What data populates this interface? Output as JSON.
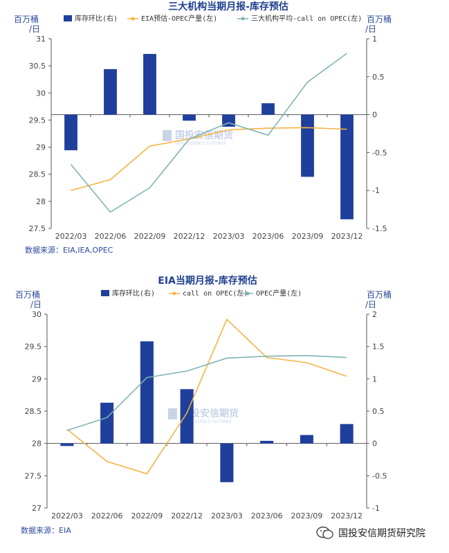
{
  "colors": {
    "bar": "#1f3f9c",
    "orange": "#f5b342",
    "teal": "#7fb3b5",
    "axis_label": "#2c4a9a",
    "title": "#1f3f8f"
  },
  "watermark": {
    "name": "国投安信期货",
    "sub": "SDIC ESSENCE FUTURES"
  },
  "footer": {
    "brand": "国投安信期货研究院",
    "icon": "wechat-icon"
  },
  "chart_data": [
    {
      "type": "bar+line",
      "title": "三大机构当期月报-库存预估",
      "left_unit": "百万桶/日",
      "right_unit": "百万桶/日",
      "source": "数据来源：EIA,IEA,OPEC",
      "categories": [
        "2022/03",
        "2022/06",
        "2022/09",
        "2022/12",
        "2023/03",
        "2023/06",
        "2023/09",
        "2023/12"
      ],
      "left_axis": {
        "min": 27.5,
        "max": 31,
        "ticks": [
          "31",
          "30.5",
          "30",
          "29.5",
          "29",
          "28.5",
          "28",
          "27.5"
        ]
      },
      "right_axis": {
        "min": -1.5,
        "max": 1,
        "ticks": [
          "1",
          "0.5",
          "0",
          "-0.5",
          "-1",
          "-1.5"
        ]
      },
      "legend": [
        "库存环比(右)",
        "EIA预估-OPEC产量(左)",
        "三大机构平均-call on OPEC(左)"
      ],
      "series": [
        {
          "name": "库存环比(右)",
          "kind": "bar",
          "axis": "right",
          "color": "#1f3f9c",
          "values": [
            -0.47,
            0.6,
            0.8,
            -0.08,
            -0.16,
            0.15,
            -0.82,
            -1.38
          ]
        },
        {
          "name": "EIA预估-OPEC产量(左)",
          "kind": "line",
          "axis": "left",
          "color": "#f5b342",
          "values": [
            28.2,
            28.4,
            29.02,
            29.15,
            29.32,
            29.35,
            29.36,
            29.33
          ]
        },
        {
          "name": "三大机构平均-call on OPEC(左)",
          "kind": "line",
          "axis": "left",
          "color": "#7fb3b5",
          "values": [
            28.68,
            27.8,
            28.25,
            29.15,
            29.45,
            29.22,
            30.2,
            30.73
          ]
        }
      ]
    },
    {
      "type": "bar+line",
      "title": "EIA当期月报-库存预估",
      "left_unit": "百万桶/日",
      "right_unit": "百万桶/日",
      "source": "数据来源：EIA",
      "categories": [
        "2022/03",
        "2022/06",
        "2022/09",
        "2022/12",
        "2023/03",
        "2023/06",
        "2023/09",
        "2023/12"
      ],
      "left_axis": {
        "min": 27,
        "max": 30,
        "ticks": [
          "30",
          "29.5",
          "29",
          "28.5",
          "28",
          "27.5",
          "27"
        ]
      },
      "right_axis": {
        "min": -1,
        "max": 2,
        "ticks": [
          "2",
          "1.5",
          "1",
          "0.5",
          "0",
          "-0.5",
          "-1"
        ]
      },
      "legend": [
        "库存环比(右)",
        "call on OPEC(左)",
        "OPEC产量(左)"
      ],
      "series": [
        {
          "name": "库存环比(右)",
          "kind": "bar",
          "axis": "right",
          "color": "#1f3f9c",
          "values": [
            -0.04,
            0.63,
            1.58,
            0.84,
            -0.6,
            0.04,
            0.13,
            0.3
          ]
        },
        {
          "name": "call on OPEC(左)",
          "kind": "line",
          "axis": "left",
          "color": "#f5b342",
          "values": [
            28.22,
            27.72,
            27.53,
            28.47,
            29.92,
            29.33,
            29.25,
            29.04
          ]
        },
        {
          "name": "OPEC产量(左)",
          "kind": "line",
          "axis": "left",
          "color": "#7fb3b5",
          "values": [
            28.2,
            28.4,
            29.02,
            29.12,
            29.32,
            29.35,
            29.36,
            29.33
          ]
        }
      ]
    }
  ]
}
